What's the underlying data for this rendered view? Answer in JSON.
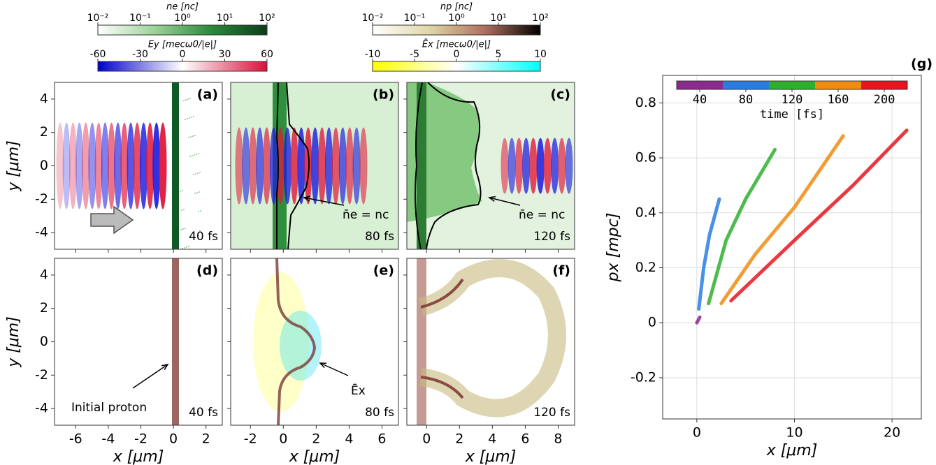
{
  "chart_data": [
    {
      "type": "colorbar",
      "label": "ne [nc]",
      "log": true,
      "xlim": [
        0.01,
        100
      ],
      "xticks": [
        {
          "value": 0.01,
          "label": "10⁻²"
        },
        {
          "value": 0.1,
          "label": "10⁻¹"
        },
        {
          "value": 1,
          "label": "10⁰"
        },
        {
          "value": 10,
          "label": "10¹"
        },
        {
          "value": 100,
          "label": "10²"
        }
      ],
      "colors": [
        "#ffffff",
        "#9ed39a",
        "#2c8a3e",
        "#0a3d18"
      ]
    },
    {
      "type": "colorbar",
      "label": "Ey [mecω0/|e|]",
      "xlim": [
        -60,
        60
      ],
      "xticks": [
        -60,
        -30,
        0,
        30,
        60
      ],
      "colors": [
        "#0000c8",
        "#ffffff",
        "#d8103a"
      ]
    },
    {
      "type": "colorbar",
      "label": "np [nc]",
      "log": true,
      "xlim": [
        0.01,
        100
      ],
      "xticks": [
        {
          "value": 0.01,
          "label": "10⁻²"
        },
        {
          "value": 0.1,
          "label": "10⁻¹"
        },
        {
          "value": 1,
          "label": "10⁰"
        },
        {
          "value": 10,
          "label": "10¹"
        },
        {
          "value": 100,
          "label": "10²"
        }
      ],
      "colors": [
        "#ffffff",
        "#e0d8a8",
        "#b07060",
        "#000000"
      ]
    },
    {
      "type": "colorbar",
      "label": "Ēx [mecω0/|e|]",
      "xlim": [
        -10,
        10
      ],
      "xticks": [
        -10,
        -5,
        0,
        5,
        10
      ],
      "colors": [
        "#ffff00",
        "#ffffff",
        "#00ffff"
      ]
    },
    {
      "type": "image",
      "label": "(a)",
      "time": "40 fs",
      "xlim": [
        -7.3,
        3
      ],
      "ylim": [
        -5,
        5
      ],
      "xticks": [
        -6,
        -4,
        -2,
        0,
        2
      ],
      "yticks": [
        -4,
        -2,
        0,
        2,
        4
      ],
      "xtick_labels": false,
      "ylabel": "y [μm]"
    },
    {
      "type": "image",
      "label": "(b)",
      "time": "80 fs",
      "xlim": [
        -3.2,
        7
      ],
      "ylim": [
        -5,
        5
      ],
      "xticks": [
        -2,
        0,
        2,
        4,
        6
      ],
      "yticks": [
        -4,
        -2,
        0,
        2,
        4
      ],
      "xtick_labels": false,
      "ytick_labels": false,
      "annotation": "n̄e = nc"
    },
    {
      "type": "image",
      "label": "(c)",
      "time": "120 fs",
      "xlim": [
        -1.2,
        9
      ],
      "ylim": [
        -5,
        5
      ],
      "xticks": [
        0,
        2,
        4,
        6,
        8
      ],
      "yticks": [
        -4,
        -2,
        0,
        2,
        4
      ],
      "xtick_labels": false,
      "ytick_labels": false,
      "annotation": "n̄e = nc"
    },
    {
      "type": "image",
      "label": "(d)",
      "time": "40 fs",
      "xlim": [
        -7.3,
        3
      ],
      "ylim": [
        -5,
        5
      ],
      "xticks": [
        -6,
        -4,
        -2,
        0,
        2
      ],
      "yticks": [
        -4,
        -2,
        0,
        2,
        4
      ],
      "ylabel": "y [μm]",
      "xlabel": "x [μm]",
      "annotation": "Initial proton"
    },
    {
      "type": "image",
      "label": "(e)",
      "time": "80 fs",
      "xlim": [
        -3.2,
        7
      ],
      "ylim": [
        -5,
        5
      ],
      "xticks": [
        -2,
        0,
        2,
        4,
        6
      ],
      "yticks": [
        -4,
        -2,
        0,
        2,
        4
      ],
      "ytick_labels": false,
      "xlabel": "x [μm]",
      "annotation": "Ēx"
    },
    {
      "type": "image",
      "label": "(f)",
      "time": "120 fs",
      "xlim": [
        -1.2,
        9
      ],
      "ylim": [
        -5,
        5
      ],
      "xticks": [
        0,
        2,
        4,
        6,
        8
      ],
      "yticks": [
        -4,
        -2,
        0,
        2,
        4
      ],
      "ytick_labels": false,
      "xlabel": "x [μm]"
    },
    {
      "type": "line",
      "label": "(g)",
      "xlabel": "x [μm]",
      "ylabel": "px [mpc]",
      "xlim": [
        -3.5,
        23
      ],
      "ylim": [
        -0.35,
        0.9
      ],
      "xticks": [
        0,
        10,
        20
      ],
      "yticks": [
        -0.2,
        0.0,
        0.2,
        0.4,
        0.6,
        0.8
      ],
      "grid": true,
      "series": [
        {
          "color": "#8b2a8f",
          "x": [
            0,
            0.3
          ],
          "values": [
            0.0,
            0.02
          ]
        },
        {
          "color": "#2a7de0",
          "x": [
            0.2,
            0.7,
            1.3,
            2.3
          ],
          "values": [
            0.05,
            0.2,
            0.32,
            0.45
          ]
        },
        {
          "color": "#2eb02e",
          "x": [
            1.2,
            3,
            5,
            8
          ],
          "values": [
            0.07,
            0.3,
            0.45,
            0.63
          ]
        },
        {
          "color": "#f08c10",
          "x": [
            2.5,
            6,
            10,
            15
          ],
          "values": [
            0.07,
            0.25,
            0.42,
            0.68
          ]
        },
        {
          "color": "#e8141e",
          "x": [
            3.5,
            10,
            16,
            21.5
          ],
          "values": [
            0.08,
            0.3,
            0.5,
            0.7
          ]
        }
      ],
      "colorbar": {
        "label": "time [fs]",
        "xlim": [
          20,
          220
        ],
        "xticks": [
          40,
          80,
          120,
          160,
          200
        ],
        "colors": [
          "#8b2a8f",
          "#2a7de0",
          "#2eb02e",
          "#f08c10",
          "#e8141e"
        ]
      }
    }
  ]
}
